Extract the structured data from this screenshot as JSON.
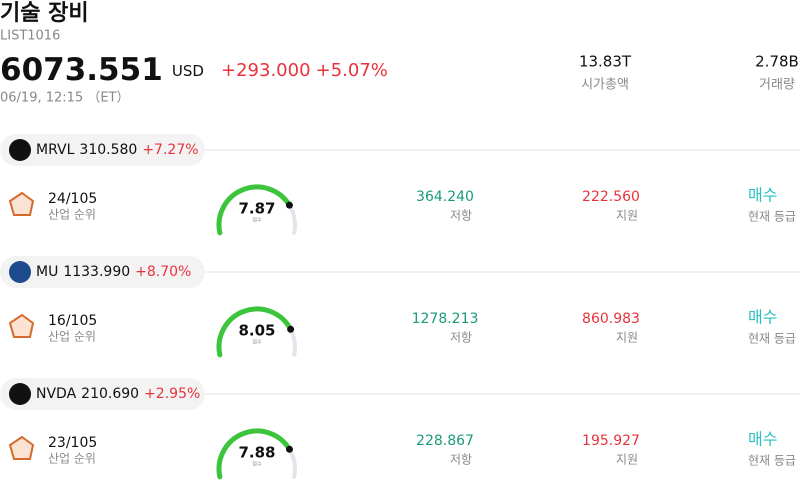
{
  "header": {
    "title": "기술 장비",
    "code": "LIST1016",
    "price": "6073.551",
    "currency": "USD",
    "change": "+293.000",
    "change_pct": "+5.07%",
    "time": "06/19, 12:15 （ET）"
  },
  "stats": [
    {
      "value": "13.83T",
      "label": "시가총액"
    },
    {
      "value": "2.78B",
      "label": "거래량"
    }
  ],
  "stocks": [
    {
      "ticker": "MRVL",
      "price": "310.580",
      "change_pct": "+7.27%",
      "rank": "24/105",
      "rank_label": "산업 순위",
      "score": 7.87,
      "score_label": "점수",
      "resistance": "364.240",
      "resistance_label": "저항",
      "support": "222.560",
      "support_label": "지원",
      "rating": "매수",
      "rating_label": "현재 등급"
    },
    {
      "ticker": "MU",
      "price": "1133.990",
      "change_pct": "+8.70%",
      "rank": "16/105",
      "rank_label": "산업 순위",
      "score": 8.05,
      "score_label": "점수",
      "resistance": "1278.213",
      "resistance_label": "저항",
      "support": "860.983",
      "support_label": "지원",
      "rating": "매수",
      "rating_label": "현재 등급"
    },
    {
      "ticker": "NVDA",
      "price": "210.690",
      "change_pct": "+2.95%",
      "rank": "23/105",
      "rank_label": "산업 순위",
      "score": 7.88,
      "score_label": "점수",
      "resistance": "228.867",
      "resistance_label": "저항",
      "support": "195.927",
      "support_label": "지원",
      "rating": "매수",
      "rating_label": "현재 등급"
    }
  ]
}
